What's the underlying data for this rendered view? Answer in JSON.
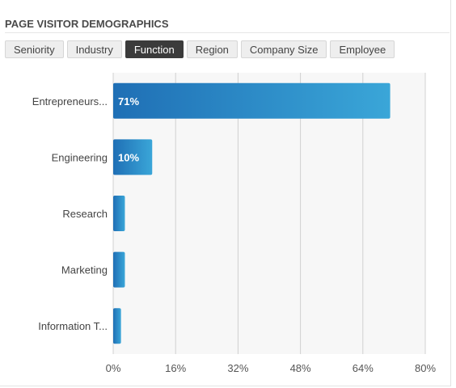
{
  "panel": {
    "title": "PAGE VISITOR DEMOGRAPHICS"
  },
  "tabs": [
    {
      "label": "Seniority",
      "active": false
    },
    {
      "label": "Industry",
      "active": false
    },
    {
      "label": "Function",
      "active": true
    },
    {
      "label": "Region",
      "active": false
    },
    {
      "label": "Company Size",
      "active": false
    },
    {
      "label": "Employee",
      "active": false
    }
  ],
  "chart_data": {
    "type": "bar",
    "orientation": "horizontal",
    "categories": [
      "Entrepreneurs...",
      "Engineering",
      "Research",
      "Marketing",
      "Information T..."
    ],
    "values": [
      71,
      10,
      3,
      3,
      2
    ],
    "data_labels": [
      "71%",
      "10%",
      "",
      "",
      ""
    ],
    "xlim": [
      0,
      80
    ],
    "xticks": [
      "0%",
      "16%",
      "32%",
      "48%",
      "64%",
      "80%"
    ],
    "tick_values": [
      0,
      16,
      32,
      48,
      64,
      80
    ],
    "grid": true,
    "colors": {
      "bar_start": "#1f6fb5",
      "bar_end": "#3aa6d8",
      "grid": "#d0d0d0"
    }
  }
}
